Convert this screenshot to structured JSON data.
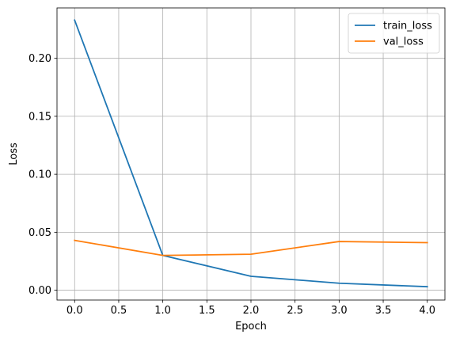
{
  "chart_data": {
    "type": "line",
    "title": "",
    "xlabel": "Epoch",
    "ylabel": "Loss",
    "xlim": [
      -0.2,
      4.2
    ],
    "ylim": [
      -0.0085,
      0.2435
    ],
    "xticks": [
      0.0,
      0.5,
      1.0,
      1.5,
      2.0,
      2.5,
      3.0,
      3.5,
      4.0
    ],
    "xtick_labels": [
      "0.0",
      "0.5",
      "1.0",
      "1.5",
      "2.0",
      "2.5",
      "3.0",
      "3.5",
      "4.0"
    ],
    "yticks": [
      0.0,
      0.05,
      0.1,
      0.15,
      0.2
    ],
    "ytick_labels": [
      "0.00",
      "0.05",
      "0.10",
      "0.15",
      "0.20"
    ],
    "grid": true,
    "legend_position": "top-right",
    "x": [
      0,
      1,
      2,
      3,
      4
    ],
    "series": [
      {
        "name": "train_loss",
        "color": "#1f77b4",
        "values": [
          0.233,
          0.03,
          0.012,
          0.006,
          0.003
        ]
      },
      {
        "name": "val_loss",
        "color": "#ff7f0e",
        "values": [
          0.043,
          0.03,
          0.031,
          0.042,
          0.041
        ]
      }
    ]
  }
}
